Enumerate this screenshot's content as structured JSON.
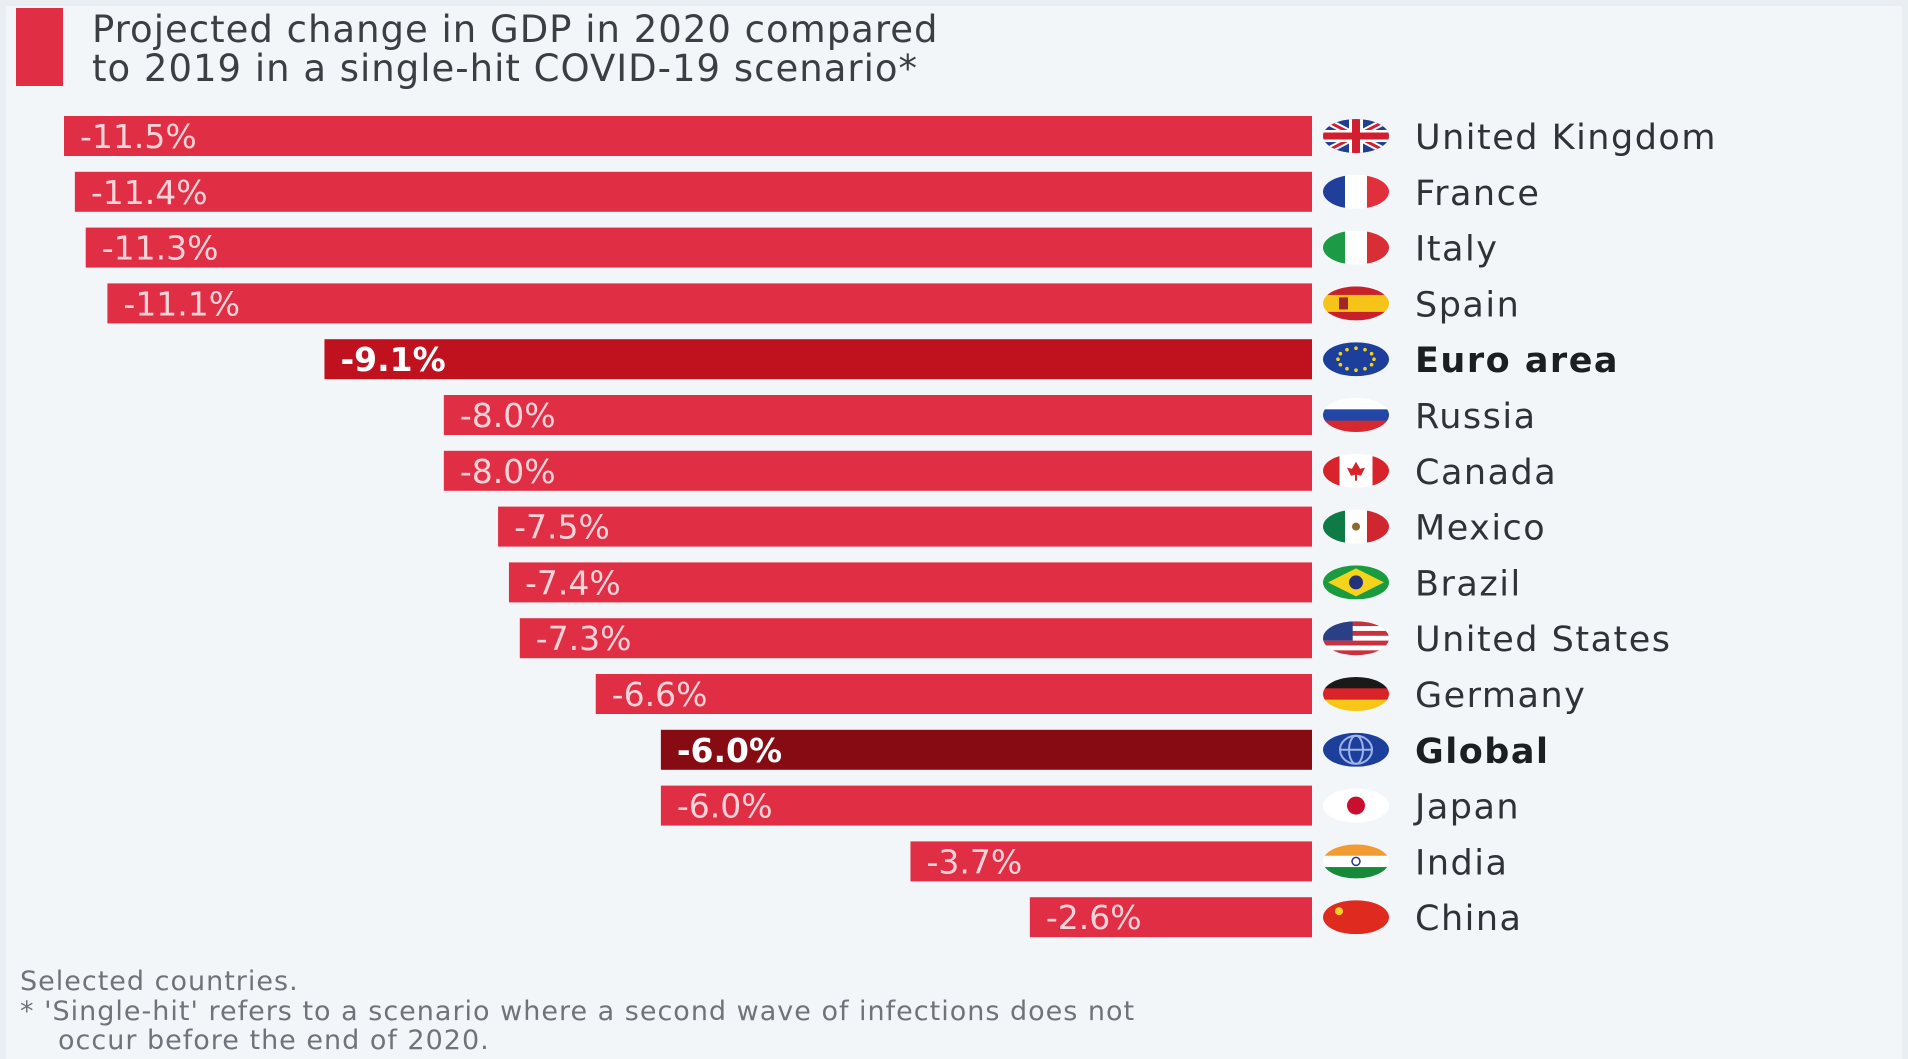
{
  "chart_data": {
    "type": "bar",
    "orientation": "horizontal",
    "title": "Projected change in GDP in 2020 compared\nto 2019 in a single-hit COVID-19 scenario*",
    "xlabel": "",
    "ylabel": "",
    "xlim": [
      -11.5,
      0
    ],
    "grid": false,
    "categories": [
      "United Kingdom",
      "France",
      "Italy",
      "Spain",
      "Euro area",
      "Russia",
      "Canada",
      "Mexico",
      "Brazil",
      "United States",
      "Germany",
      "Global",
      "Japan",
      "India",
      "China"
    ],
    "values": [
      -11.5,
      -11.4,
      -11.3,
      -11.1,
      -9.1,
      -8.0,
      -8.0,
      -7.5,
      -7.4,
      -7.3,
      -6.6,
      -6.0,
      -6.0,
      -3.7,
      -2.6
    ],
    "labels": [
      "-11.5%",
      "-11.4%",
      "-11.3%",
      "-11.1%",
      "-9.1%",
      "-8.0%",
      "-8.0%",
      "-7.5%",
      "-7.4%",
      "-7.3%",
      "-6.6%",
      "-6.0%",
      "-6.0%",
      "-3.7%",
      "-2.6%"
    ],
    "highlighted": [
      "Euro area",
      "Global"
    ],
    "flag_icons": [
      "uk-flag-icon",
      "france-flag-icon",
      "italy-flag-icon",
      "spain-flag-icon",
      "eu-flag-icon",
      "russia-flag-icon",
      "canada-flag-icon",
      "mexico-flag-icon",
      "brazil-flag-icon",
      "usa-flag-icon",
      "germany-flag-icon",
      "globe-icon",
      "japan-flag-icon",
      "india-flag-icon",
      "china-flag-icon"
    ]
  },
  "notes": {
    "selected": "Selected countries.",
    "single_hit_line1": "* 'Single-hit' refers to a scenario where a second wave of infections does not",
    "single_hit_line2": "occur before the end of 2020."
  },
  "colors": {
    "bar": "#e02e44",
    "bar_euro_area": "#c0111f",
    "bar_global": "#860b12",
    "accent": "#e02e44",
    "background": "#f3f6f9"
  }
}
